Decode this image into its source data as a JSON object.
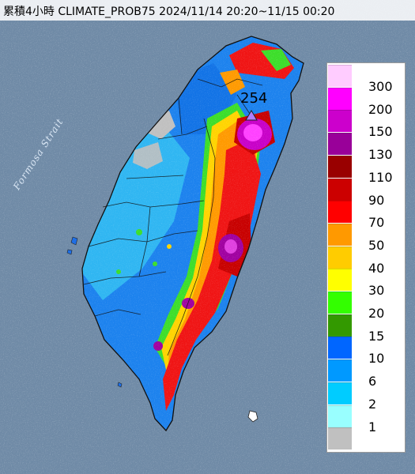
{
  "title": "累積4小時 CLIMATE_PROB75 2024/11/14 20:20~11/15 00:20",
  "strait_label": "Formosa Strait",
  "max_marker": {
    "value_label": "254"
  },
  "legend": {
    "items": [
      {
        "label": "300",
        "color": "#ffccff"
      },
      {
        "label": "200",
        "color": "#ff00ff"
      },
      {
        "label": "150",
        "color": "#cc00cc"
      },
      {
        "label": "130",
        "color": "#990099"
      },
      {
        "label": "110",
        "color": "#990000"
      },
      {
        "label": "90",
        "color": "#cc0000"
      },
      {
        "label": "70",
        "color": "#ff0000"
      },
      {
        "label": "50",
        "color": "#ff9900"
      },
      {
        "label": "40",
        "color": "#ffcc00"
      },
      {
        "label": "30",
        "color": "#ffff00"
      },
      {
        "label": "20",
        "color": "#33ff00"
      },
      {
        "label": "15",
        "color": "#339900"
      },
      {
        "label": "10",
        "color": "#0066ff"
      },
      {
        "label": "6",
        "color": "#0099ff"
      },
      {
        "label": "2",
        "color": "#00ccff"
      },
      {
        "label": "1",
        "color": "#99ffff"
      },
      {
        "label": "",
        "color": "#c0c0c0"
      }
    ]
  },
  "colors": {
    "sea": "#6f8aa6",
    "no_data": "#c0c0c0"
  }
}
